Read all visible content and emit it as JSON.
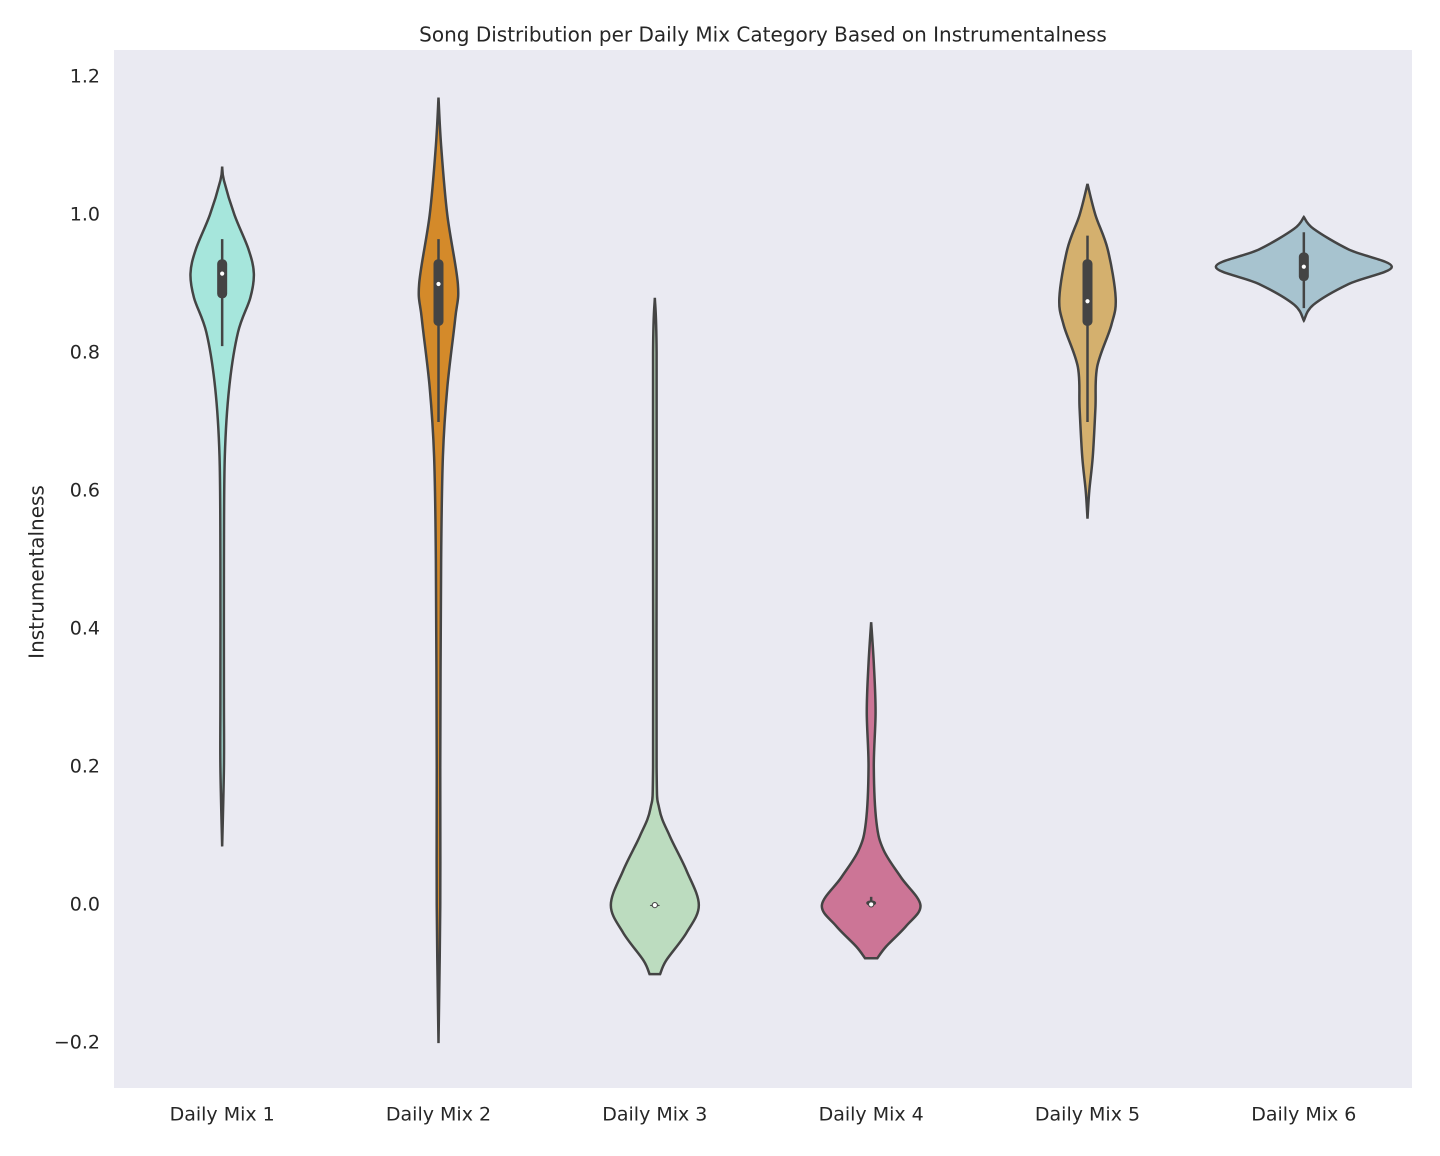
{
  "chart_data": {
    "type": "violin",
    "title": "Song Distribution per Daily Mix Category Based on Instrumentalness",
    "y_label": "Instrumentalness",
    "categories": [
      "Daily Mix 1",
      "Daily Mix 2",
      "Daily Mix 3",
      "Daily Mix 4",
      "Daily Mix 5",
      "Daily Mix 6"
    ],
    "violins": [
      {
        "color": "#a6e6dc",
        "box": [
          0.81,
          0.88,
          0.915,
          0.935,
          0.965
        ],
        "y": [
          1.07,
          1.05,
          1.0,
          0.95,
          0.915,
          0.88,
          0.83,
          0.75,
          0.65,
          0.5,
          0.3,
          0.2,
          0.085
        ],
        "density": [
          0,
          0.02,
          0.14,
          0.3,
          0.36,
          0.32,
          0.18,
          0.08,
          0.03,
          0.02,
          0.02,
          0.02,
          0
        ]
      },
      {
        "color": "#d48a2a",
        "box": [
          0.7,
          0.84,
          0.9,
          0.935,
          0.965
        ],
        "y": [
          1.17,
          1.1,
          1.0,
          0.9,
          0.85,
          0.75,
          0.65,
          0.5,
          0.2,
          0.0,
          -0.2
        ],
        "density": [
          0,
          0.03,
          0.1,
          0.22,
          0.19,
          0.1,
          0.05,
          0.03,
          0.02,
          0.02,
          0
        ]
      },
      {
        "color": "#bcdcbf",
        "box": [
          0,
          0,
          0,
          0,
          0
        ],
        "y": [
          0.88,
          0.8,
          0.5,
          0.2,
          0.14,
          0.1,
          0.05,
          0.0,
          -0.04,
          -0.08,
          -0.1
        ],
        "density": [
          0,
          0.02,
          0.02,
          0.02,
          0.05,
          0.17,
          0.36,
          0.5,
          0.36,
          0.13,
          0.06
        ]
      },
      {
        "color": "#cc7596",
        "box": [
          0,
          0,
          0.001,
          0.006,
          0.012
        ],
        "y": [
          0.41,
          0.35,
          0.28,
          0.2,
          0.12,
          0.08,
          0.04,
          0.0,
          -0.03,
          -0.06,
          -0.077
        ],
        "density": [
          0,
          0.03,
          0.05,
          0.03,
          0.06,
          0.14,
          0.34,
          0.56,
          0.4,
          0.17,
          0.07
        ]
      },
      {
        "color": "#d4b06e",
        "box": [
          0.7,
          0.84,
          0.875,
          0.935,
          0.97
        ],
        "y": [
          1.045,
          1.0,
          0.95,
          0.88,
          0.84,
          0.78,
          0.72,
          0.65,
          0.6,
          0.56
        ],
        "density": [
          0,
          0.09,
          0.23,
          0.32,
          0.27,
          0.11,
          0.09,
          0.06,
          0.02,
          0
        ]
      },
      {
        "color": "#a7c3cf",
        "box": [
          0.865,
          0.905,
          0.925,
          0.945,
          0.975
        ],
        "y": [
          0.997,
          0.98,
          0.95,
          0.925,
          0.9,
          0.87,
          0.847
        ],
        "density": [
          0,
          0.11,
          0.51,
          1.0,
          0.51,
          0.11,
          0
        ]
      }
    ],
    "ylim": [
      -0.265,
      1.239
    ],
    "yticks": [
      {
        "value": -0.2,
        "label": "−0.2"
      },
      {
        "value": 0,
        "label": "0.0"
      },
      0.2,
      0.4,
      0.6,
      0.8,
      {
        "value": 1,
        "label": "1.0"
      },
      1.2
    ],
    "background": "#eaeaf2"
  }
}
